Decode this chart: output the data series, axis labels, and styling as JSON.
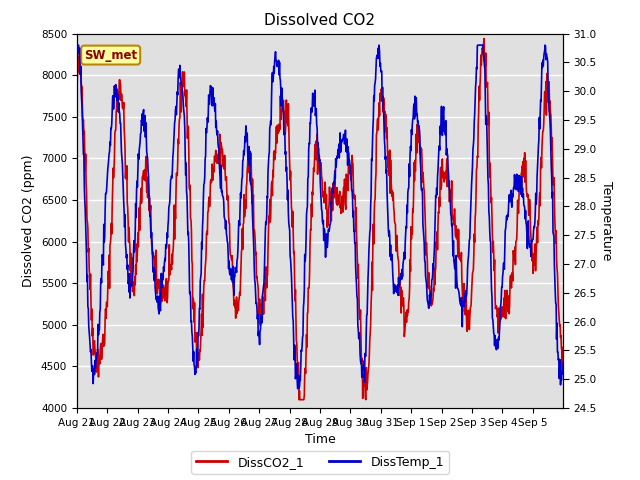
{
  "title": "Dissolved CO2",
  "xlabel": "Time",
  "ylabel_left": "Dissolved CO2 (ppm)",
  "ylabel_right": "Temperature",
  "annotation": "SW_met",
  "legend": [
    "DissCO2_1",
    "DissTemp_1"
  ],
  "co2_color": "#CC0000",
  "temp_color": "#0000CC",
  "co2_linewidth": 1.2,
  "temp_linewidth": 1.2,
  "ylim_left": [
    4000,
    8500
  ],
  "ylim_right": [
    24.5,
    31.0
  ],
  "background_color": "#ffffff",
  "plot_bg_color": "#e0e0e0",
  "grid_color": "#ffffff",
  "title_fontsize": 11,
  "label_fontsize": 9,
  "tick_fontsize": 7.5,
  "n_points": 1100,
  "xtick_labels": [
    "Aug 21",
    "Aug 22",
    "Aug 23",
    "Aug 24",
    "Aug 25",
    "Aug 26",
    "Aug 27",
    "Aug 28",
    "Aug 29",
    "Aug 30",
    "Aug 31",
    "Sep 1",
    "Sep 2",
    "Sep 3",
    "Sep 4",
    "Sep 5"
  ]
}
